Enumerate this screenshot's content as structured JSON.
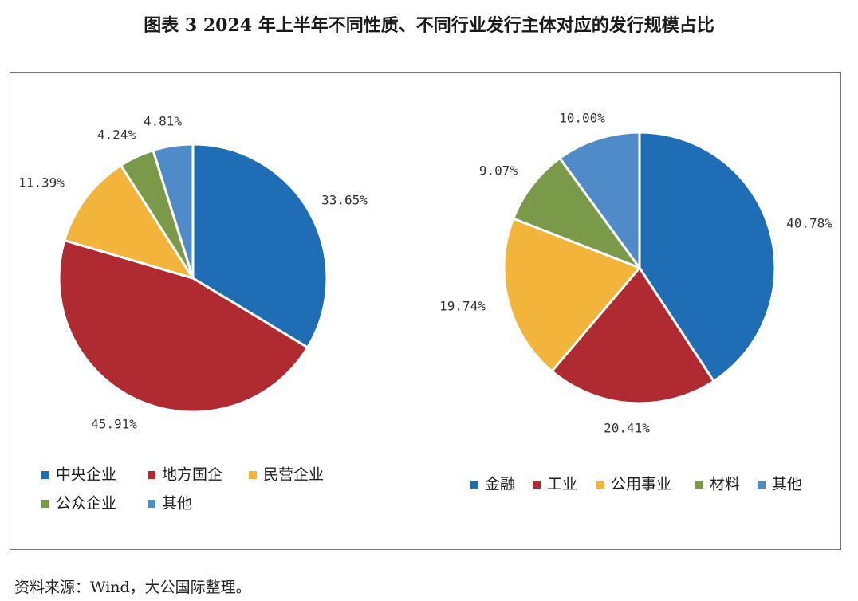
{
  "title": "图表 3 2024 年上半年不同性质、不同行业发行主体对应的发行规模占比",
  "source": "资料来源：Wind，大公国际整理。",
  "chart_data": [
    {
      "type": "pie",
      "title": "",
      "categories": [
        "中央企业",
        "地方国企",
        "民营企业",
        "公众企业",
        "其他"
      ],
      "values": [
        33.65,
        45.91,
        11.39,
        4.24,
        4.81
      ],
      "labels": [
        "33.65%",
        "45.91%",
        "11.39%",
        "4.24%",
        "4.81%"
      ],
      "colors": [
        "#1f6db5",
        "#b02a31",
        "#f2b43a",
        "#7a9a4a",
        "#4f8ac9"
      ],
      "legend_position": "bottom"
    },
    {
      "type": "pie",
      "title": "",
      "categories": [
        "金融",
        "工业",
        "公用事业",
        "材料",
        "其他"
      ],
      "values": [
        40.78,
        20.41,
        19.74,
        9.07,
        10.0
      ],
      "labels": [
        "40.78%",
        "20.41%",
        "19.74%",
        "9.07%",
        "10.00%"
      ],
      "colors": [
        "#1f6db5",
        "#b02a31",
        "#f2b43a",
        "#7a9a4a",
        "#4f8ac9"
      ],
      "legend_position": "bottom"
    }
  ]
}
